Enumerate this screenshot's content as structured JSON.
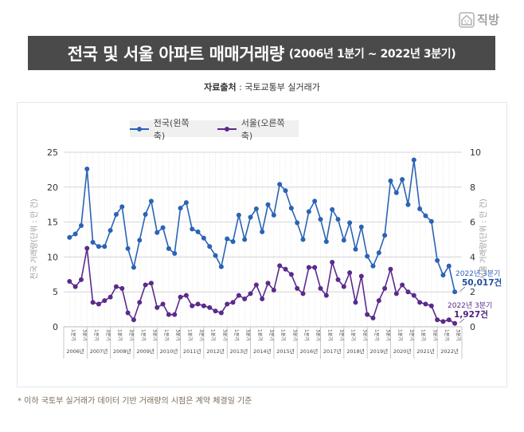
{
  "logo": {
    "text": "직방",
    "icon": "house-face-icon"
  },
  "header": {
    "title": "전국 및 서울 아파트 매매거래량",
    "subtitle": "(2006년 1분기 ~ 2022년 3분기)"
  },
  "source": {
    "label": "자료출처",
    "separator": " : ",
    "value": "국토교통부 실거래가"
  },
  "footnote": "* 이하 국토부 실거래가 데이터 기반 거래량의 시점은 계약 체결일 기준",
  "colors": {
    "nation": "#2a63b5",
    "seoul": "#5b2a8c",
    "title_bg": "#4a4a4a",
    "annotation_nation": "#1f4fa0",
    "annotation_seoul": "#4b1e7e"
  },
  "chart_data": {
    "type": "line",
    "title": "전국 및 서울 아파트 매매거래량 (2006년 1분기 ~ 2022년 3분기)",
    "legend": [
      {
        "name": "전국(왼쪽 축)",
        "axis": "left"
      },
      {
        "name": "서울(오른쪽 축)",
        "axis": "right"
      }
    ],
    "legend_placement": "top-center",
    "ylabel_left": "전국 거래량(단위 : 만 건)",
    "ylabel_right": "서울 거래량(단위 : 만 건)",
    "ylim_left": [
      0,
      25
    ],
    "ylim_right": [
      0,
      10
    ],
    "yticks_left": [
      "0",
      "5",
      "10",
      "15",
      "20",
      "25"
    ],
    "yticks_right": [
      "0",
      "2",
      "4",
      "6",
      "8",
      "10"
    ],
    "grid": true,
    "years": [
      "2006년",
      "2007년",
      "2008년",
      "2009년",
      "2010년",
      "2011년",
      "2012년",
      "2013년",
      "2014년",
      "2015년",
      "2016년",
      "2017년",
      "2018년",
      "2019년",
      "2020년",
      "2021년",
      "2022년"
    ],
    "quarter_labels": [
      "1분기",
      "3분기"
    ],
    "x_start": "2006년 1분기",
    "x_end": "2022년 3분기",
    "series": [
      {
        "name": "전국(왼쪽 축)",
        "axis": "left",
        "unit": "만 건",
        "values": [
          12.8,
          13.3,
          14.5,
          22.6,
          12.1,
          11.5,
          11.5,
          13.8,
          16.1,
          17.2,
          11.2,
          8.5,
          12.4,
          16.1,
          18.0,
          13.5,
          14.2,
          11.2,
          10.5,
          17.0,
          17.8,
          14.0,
          13.6,
          12.7,
          11.5,
          10.2,
          8.6,
          12.6,
          12.2,
          16.0,
          12.5,
          15.7,
          16.9,
          13.6,
          17.5,
          16.0,
          20.4,
          19.5,
          17.0,
          14.9,
          12.5,
          16.5,
          18.0,
          15.4,
          12.2,
          16.8,
          15.4,
          12.4,
          14.9,
          11.1,
          14.3,
          10.1,
          8.7,
          10.6,
          13.1,
          20.9,
          19.2,
          21.1,
          17.5,
          23.9,
          16.9,
          15.9,
          15.1,
          9.5,
          7.4,
          8.7,
          5.0017
        ]
      },
      {
        "name": "서울(오른쪽 축)",
        "axis": "right",
        "unit": "만 건",
        "values": [
          2.6,
          2.3,
          2.7,
          4.5,
          1.4,
          1.3,
          1.5,
          1.7,
          2.3,
          2.2,
          0.8,
          0.4,
          1.4,
          2.4,
          2.5,
          1.1,
          1.3,
          0.7,
          0.7,
          1.7,
          1.8,
          1.2,
          1.3,
          1.2,
          1.1,
          0.9,
          0.8,
          1.3,
          1.4,
          1.8,
          1.6,
          1.9,
          2.4,
          1.6,
          2.5,
          2.1,
          3.5,
          3.3,
          3.0,
          2.2,
          1.9,
          3.4,
          3.4,
          2.2,
          1.8,
          3.7,
          2.7,
          2.3,
          3.1,
          1.4,
          2.9,
          0.7,
          0.5,
          1.5,
          2.2,
          3.3,
          1.9,
          2.4,
          2.0,
          1.8,
          1.4,
          1.3,
          1.2,
          0.4,
          0.3,
          0.4,
          0.1927
        ]
      }
    ],
    "annotations": [
      {
        "series": "전국(왼쪽 축)",
        "period": "2022년 3분기",
        "value_text": "50,017건"
      },
      {
        "series": "서울(오른쪽 축)",
        "period": "2022년 3분기",
        "value_text": "1,927건"
      }
    ]
  }
}
